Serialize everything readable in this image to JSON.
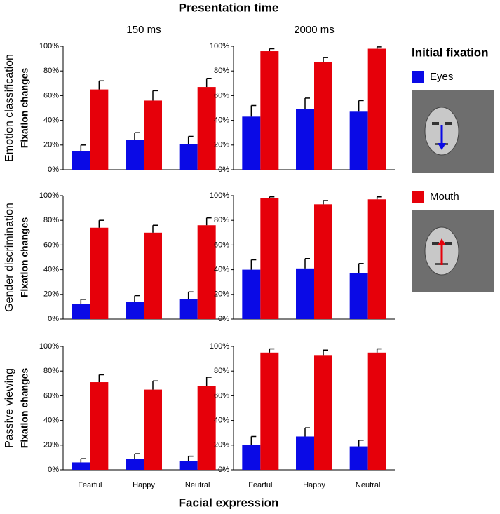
{
  "title": "Presentation time",
  "xlabel": "Facial expression",
  "legend_title": "Initial fixation",
  "chart_data": [
    {
      "type": "bar",
      "column_label": "150 ms",
      "row_label": "Emotion classification",
      "ylabel": "Fixation changes",
      "categories": [
        null,
        null,
        null
      ],
      "series": [
        {
          "name": "Eyes",
          "color": "#0a0ae6",
          "values": [
            15,
            24,
            21
          ],
          "errors": [
            5,
            6,
            6
          ]
        },
        {
          "name": "Mouth",
          "color": "#e6000a",
          "values": [
            65,
            56,
            67
          ],
          "errors": [
            7,
            8,
            7
          ]
        }
      ],
      "ylim": [
        0,
        100
      ],
      "yticks": [
        {
          "value": 0,
          "label": "0%"
        },
        {
          "value": 20,
          "label": "20%"
        },
        {
          "value": 40,
          "label": "40%"
        },
        {
          "value": 60,
          "label": "60%"
        },
        {
          "value": 80,
          "label": "80%"
        },
        {
          "value": 100,
          "label": "100%"
        }
      ]
    },
    {
      "type": "bar",
      "column_label": "2000 ms",
      "categories": [
        null,
        null,
        null
      ],
      "series": [
        {
          "color": "#0a0ae6",
          "values": [
            43,
            49,
            47
          ],
          "errors": [
            9,
            9,
            9
          ]
        },
        {
          "color": "#e6000a",
          "values": [
            96,
            87,
            98
          ],
          "errors": [
            2,
            4,
            1.5
          ]
        }
      ],
      "ylim": [
        0,
        100
      ],
      "yticks": [
        {
          "value": 0,
          "label": "0%"
        },
        {
          "value": 20,
          "label": "20%"
        },
        {
          "value": 40,
          "label": "40%"
        },
        {
          "value": 60,
          "label": "60%"
        },
        {
          "value": 80,
          "label": "80%"
        },
        {
          "value": 100,
          "label": "100%"
        }
      ]
    },
    {
      "type": "bar",
      "row_label": "Gender discrimination",
      "ylabel": "Fixation changes",
      "categories": [
        null,
        null,
        null
      ],
      "series": [
        {
          "color": "#0a0ae6",
          "values": [
            12,
            14,
            16
          ],
          "errors": [
            4,
            5,
            6
          ]
        },
        {
          "color": "#e6000a",
          "values": [
            74,
            70,
            76
          ],
          "errors": [
            6,
            6,
            6
          ]
        }
      ],
      "ylim": [
        0,
        100
      ],
      "yticks": [
        {
          "value": 0,
          "label": "0%"
        },
        {
          "value": 20,
          "label": "20%"
        },
        {
          "value": 40,
          "label": "40%"
        },
        {
          "value": 60,
          "label": "60%"
        },
        {
          "value": 80,
          "label": "80%"
        },
        {
          "value": 100,
          "label": "100%"
        }
      ]
    },
    {
      "type": "bar",
      "categories": [
        null,
        null,
        null
      ],
      "series": [
        {
          "color": "#0a0ae6",
          "values": [
            40,
            41,
            37
          ],
          "errors": [
            8,
            8,
            8
          ]
        },
        {
          "color": "#e6000a",
          "values": [
            98,
            93,
            97
          ],
          "errors": [
            1,
            3,
            2
          ]
        }
      ],
      "ylim": [
        0,
        100
      ],
      "yticks": [
        {
          "value": 0,
          "label": "0%"
        },
        {
          "value": 20,
          "label": "20%"
        },
        {
          "value": 40,
          "label": "40%"
        },
        {
          "value": 60,
          "label": "60%"
        },
        {
          "value": 80,
          "label": "80%"
        },
        {
          "value": 100,
          "label": "100%"
        }
      ]
    },
    {
      "type": "bar",
      "row_label": "Passive viewing",
      "ylabel": "Fixation changes",
      "categories": [
        "Fearful",
        "Happy",
        "Neutral"
      ],
      "series": [
        {
          "color": "#0a0ae6",
          "values": [
            6,
            9,
            7
          ],
          "errors": [
            3,
            4,
            4
          ]
        },
        {
          "color": "#e6000a",
          "values": [
            71,
            65,
            68
          ],
          "errors": [
            6,
            7,
            7
          ]
        }
      ],
      "ylim": [
        0,
        100
      ],
      "yticks": [
        {
          "value": 0,
          "label": "0%"
        },
        {
          "value": 20,
          "label": "20%"
        },
        {
          "value": 40,
          "label": "40%"
        },
        {
          "value": 60,
          "label": "60%"
        },
        {
          "value": 80,
          "label": "80%"
        },
        {
          "value": 100,
          "label": "100%"
        }
      ]
    },
    {
      "type": "bar",
      "categories": [
        "Fearful",
        "Happy",
        "Neutral"
      ],
      "series": [
        {
          "color": "#0a0ae6",
          "values": [
            20,
            27,
            19
          ],
          "errors": [
            7,
            7,
            5
          ]
        },
        {
          "color": "#e6000a",
          "values": [
            95,
            93,
            95
          ],
          "errors": [
            3,
            4,
            3
          ]
        }
      ],
      "ylim": [
        0,
        100
      ],
      "yticks": [
        {
          "value": 0,
          "label": "0%"
        },
        {
          "value": 20,
          "label": "20%"
        },
        {
          "value": 40,
          "label": "40%"
        },
        {
          "value": 60,
          "label": "60%"
        },
        {
          "value": 80,
          "label": "80%"
        },
        {
          "value": 100,
          "label": "100%"
        }
      ]
    }
  ]
}
